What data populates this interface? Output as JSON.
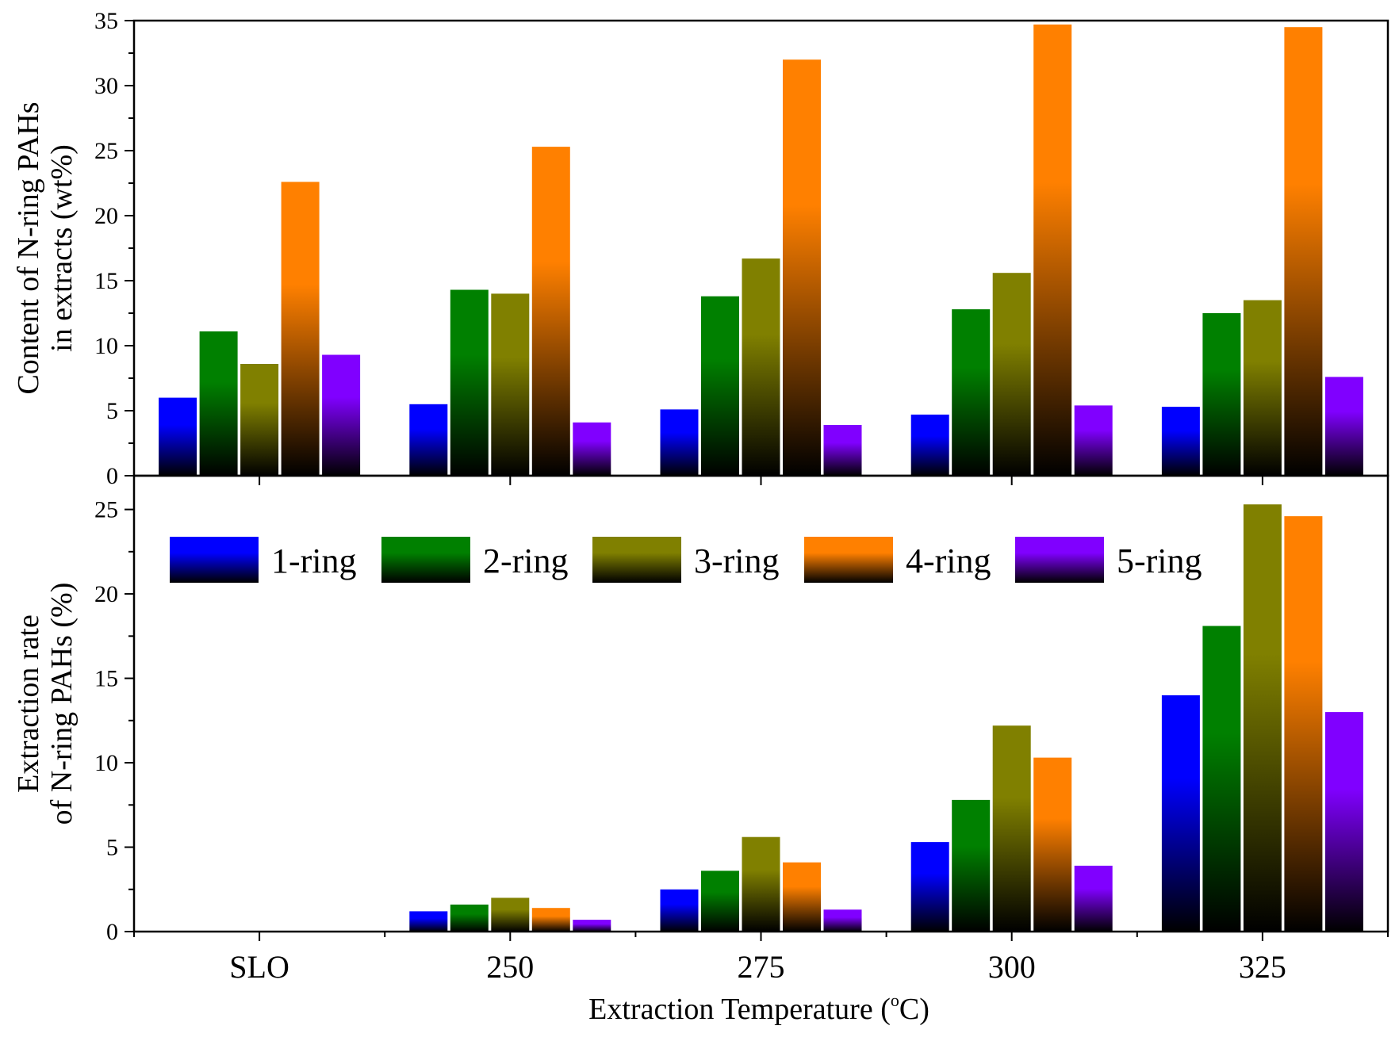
{
  "chart_data": {
    "type": "bar",
    "xlabel": "Extraction Temperature (",
    "xlabel_degree": "o",
    "xlabel_unit": "C)",
    "categories": [
      "SLO",
      "250",
      "275",
      "300",
      "325"
    ],
    "legend_position": "top of lower panel",
    "series_names": [
      "1-ring",
      "2-ring",
      "3-ring",
      "4-ring",
      "5-ring"
    ],
    "colors": [
      "#0000ff",
      "#008000",
      "#808000",
      "#ff8000",
      "#8000ff"
    ],
    "panels": [
      {
        "name": "top",
        "ylabel_lines": [
          "Content of N-ring PAHs",
          "in extracts (wt%)"
        ],
        "ylim": [
          0,
          35
        ],
        "yticks": [
          0,
          5,
          10,
          15,
          20,
          25,
          30,
          35
        ],
        "series": [
          {
            "name": "1-ring",
            "values": [
              6.0,
              5.5,
              5.1,
              4.7,
              5.3
            ]
          },
          {
            "name": "2-ring",
            "values": [
              11.1,
              14.3,
              13.8,
              12.8,
              12.5
            ]
          },
          {
            "name": "3-ring",
            "values": [
              8.6,
              14.0,
              16.7,
              15.6,
              13.5
            ]
          },
          {
            "name": "4-ring",
            "values": [
              22.6,
              25.3,
              32.0,
              34.7,
              34.5
            ]
          },
          {
            "name": "5-ring",
            "values": [
              9.3,
              4.1,
              3.9,
              5.4,
              7.6
            ]
          }
        ]
      },
      {
        "name": "bottom",
        "ylabel_lines": [
          "Extraction rate",
          "of N-ring PAHs (%)"
        ],
        "ylim": [
          0,
          27
        ],
        "yticks": [
          0,
          5,
          10,
          15,
          20,
          25
        ],
        "series": [
          {
            "name": "1-ring",
            "values": [
              0,
              1.2,
              2.5,
              5.3,
              14.0
            ]
          },
          {
            "name": "2-ring",
            "values": [
              0,
              1.6,
              3.6,
              7.8,
              18.1
            ]
          },
          {
            "name": "3-ring",
            "values": [
              0,
              2.0,
              5.6,
              12.2,
              25.3
            ]
          },
          {
            "name": "4-ring",
            "values": [
              0,
              1.4,
              4.1,
              10.3,
              24.6
            ]
          },
          {
            "name": "5-ring",
            "values": [
              0,
              0.7,
              1.3,
              3.9,
              13.0
            ]
          }
        ]
      }
    ]
  }
}
